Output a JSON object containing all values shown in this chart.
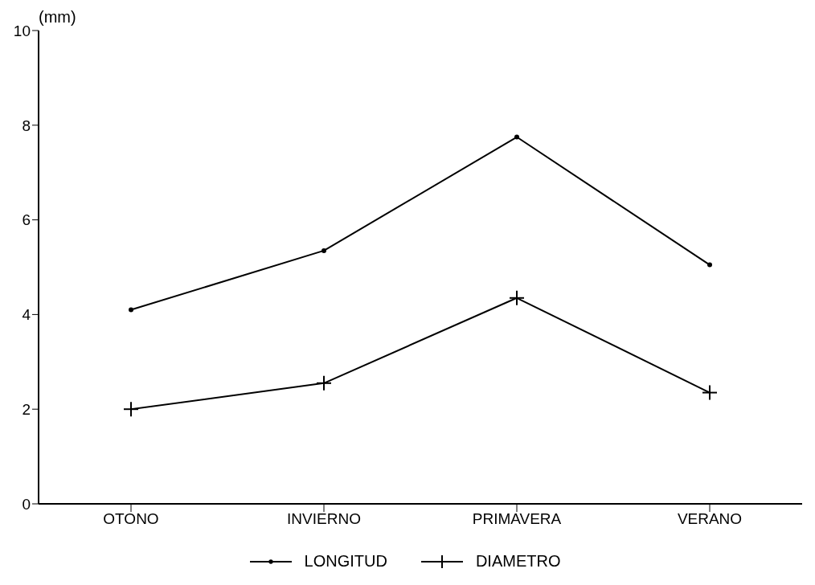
{
  "chart_data": {
    "type": "line",
    "ylabel": "(mm)",
    "categories": [
      "OTONO",
      "INVIERNO",
      "PRIMAVERA",
      "VERANO"
    ],
    "series": [
      {
        "name": "LONGITUD",
        "color": "#000000",
        "marker": "circle",
        "values": [
          4.1,
          5.35,
          7.75,
          5.05
        ]
      },
      {
        "name": "DIAMETRO",
        "color": "#000000",
        "marker": "cross",
        "values": [
          2.0,
          2.55,
          4.35,
          2.35
        ]
      }
    ],
    "ylim": [
      0,
      10
    ],
    "yticks": [
      0,
      2,
      4,
      6,
      8,
      10
    ],
    "grid": false,
    "legend": "bottom"
  }
}
